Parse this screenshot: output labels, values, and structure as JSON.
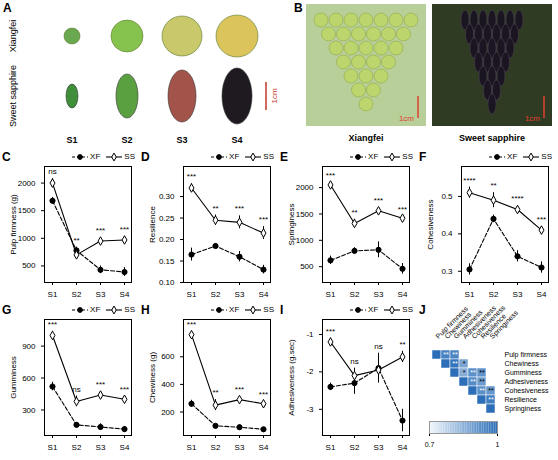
{
  "photos": {
    "A": {
      "panel": "A",
      "rows": [
        "Xiangfei",
        "Sweet sapphire"
      ],
      "stages": [
        "S1",
        "S2",
        "S3",
        "S4"
      ],
      "scale_bar": "1cm"
    },
    "B": {
      "panel": "B",
      "photos": [
        {
          "caption": "Xiangfei",
          "scale_bar": "1cm"
        },
        {
          "caption": "Sweet sapphire",
          "scale_bar": "1cm"
        }
      ]
    }
  },
  "chart_data": [
    {
      "panel": "C",
      "type": "line",
      "categories": [
        "S1",
        "S2",
        "S3",
        "S4"
      ],
      "y_label": "Pulp firmness (g)",
      "ylim": [
        200,
        2300
      ],
      "yticks": [
        500,
        1000,
        1500,
        2000
      ],
      "legend": "top",
      "significance": [
        "ns",
        "**",
        "***",
        "***"
      ],
      "series": [
        {
          "name": "XF",
          "color": "#000000",
          "marker": "circle",
          "line_style": "dashed",
          "values": [
            1680,
            780,
            430,
            390
          ],
          "errors": [
            60,
            60,
            70,
            80
          ]
        },
        {
          "name": "SS",
          "color": "#000000",
          "marker": "open-diamond",
          "line_style": "solid",
          "values": [
            2000,
            700,
            950,
            970
          ],
          "errors": [
            80,
            50,
            60,
            60
          ]
        }
      ]
    },
    {
      "panel": "D",
      "type": "line",
      "categories": [
        "S1",
        "S2",
        "S3",
        "S4"
      ],
      "y_label": "Resilience",
      "ylim": [
        0.1,
        0.37
      ],
      "yticks": [
        {
          "value": 0.1,
          "label": "0.10"
        },
        0.15,
        {
          "value": 0.2,
          "label": "0.20"
        },
        0.25,
        {
          "value": 0.3,
          "label": "0.30"
        }
      ],
      "legend": "top",
      "significance": [
        "***",
        "**",
        "***",
        "***"
      ],
      "series": [
        {
          "name": "XF",
          "color": "#000000",
          "marker": "circle",
          "line_style": "dashed",
          "values": [
            0.165,
            0.185,
            0.16,
            0.13
          ],
          "errors": [
            0.015,
            0.005,
            0.012,
            0.01
          ]
        },
        {
          "name": "SS",
          "color": "#000000",
          "marker": "open-diamond",
          "line_style": "solid",
          "values": [
            0.32,
            0.245,
            0.24,
            0.215
          ],
          "errors": [
            0.01,
            0.012,
            0.015,
            0.015
          ]
        }
      ]
    },
    {
      "panel": "E",
      "type": "line",
      "categories": [
        "S1",
        "S2",
        "S3",
        "S4"
      ],
      "y_label": "Springiness",
      "ylim": [
        200,
        2400
      ],
      "yticks": [
        500,
        1000,
        1500,
        2000
      ],
      "legend": "top",
      "significance": [
        "***",
        "**",
        "***",
        "***"
      ],
      "series": [
        {
          "name": "XF",
          "color": "#000000",
          "marker": "circle",
          "line_style": "dashed",
          "values": [
            620,
            800,
            820,
            460
          ],
          "errors": [
            80,
            60,
            150,
            100
          ]
        },
        {
          "name": "SS",
          "color": "#000000",
          "marker": "open-diamond",
          "line_style": "solid",
          "values": [
            2050,
            1320,
            1560,
            1420
          ],
          "errors": [
            50,
            80,
            60,
            40
          ]
        }
      ]
    },
    {
      "panel": "F",
      "type": "line",
      "categories": [
        "S1",
        "S2",
        "S3",
        "S4"
      ],
      "y_label": "Cohesiveness",
      "ylim": [
        0.27,
        0.58
      ],
      "yticks": [
        0.3,
        0.4,
        0.5
      ],
      "legend": "top",
      "significance": [
        "****",
        "**",
        "****",
        "***"
      ],
      "series": [
        {
          "name": "XF",
          "color": "#000000",
          "marker": "circle",
          "line_style": "dashed",
          "values": [
            0.305,
            0.44,
            0.34,
            0.31
          ],
          "errors": [
            0.015,
            0.01,
            0.015,
            0.015
          ]
        },
        {
          "name": "SS",
          "color": "#000000",
          "marker": "open-diamond",
          "line_style": "solid",
          "values": [
            0.51,
            0.49,
            0.465,
            0.41
          ],
          "errors": [
            0.015,
            0.02,
            0.01,
            0.01
          ]
        }
      ]
    },
    {
      "panel": "G",
      "type": "line",
      "categories": [
        "S1",
        "S2",
        "S3",
        "S4"
      ],
      "y_label": "Gumminess",
      "ylim": [
        60,
        1150
      ],
      "yticks": [
        300,
        600,
        900
      ],
      "legend": "top",
      "significance": [
        "***",
        "ns",
        "***",
        "***"
      ],
      "series": [
        {
          "name": "XF",
          "color": "#000000",
          "marker": "circle",
          "line_style": "dashed",
          "values": [
            520,
            160,
            140,
            120
          ],
          "errors": [
            40,
            20,
            30,
            25
          ]
        },
        {
          "name": "SS",
          "color": "#000000",
          "marker": "open-diamond",
          "line_style": "solid",
          "values": [
            1000,
            380,
            440,
            400
          ],
          "errors": [
            40,
            50,
            30,
            30
          ]
        }
      ]
    },
    {
      "panel": "H",
      "type": "line",
      "categories": [
        "S1",
        "S2",
        "S3",
        "S4"
      ],
      "y_label": "Chewiness (g)",
      "ylim": [
        30,
        870
      ],
      "yticks": [
        200,
        400,
        600
      ],
      "legend": "top",
      "significance": [
        "***",
        "**",
        "***",
        "***"
      ],
      "series": [
        {
          "name": "XF",
          "color": "#000000",
          "marker": "circle",
          "line_style": "dashed",
          "values": [
            260,
            100,
            90,
            75
          ],
          "errors": [
            25,
            10,
            15,
            10
          ]
        },
        {
          "name": "SS",
          "color": "#000000",
          "marker": "open-diamond",
          "line_style": "solid",
          "values": [
            760,
            250,
            290,
            260
          ],
          "errors": [
            20,
            40,
            20,
            20
          ]
        }
      ]
    },
    {
      "panel": "I",
      "type": "line",
      "categories": [
        "S1",
        "S2",
        "S3",
        "S4"
      ],
      "y_label": "Adhesiveness (g.sec)",
      "ylim": [
        -3.7,
        -0.6
      ],
      "yticks": [
        -3,
        -2,
        -1
      ],
      "legend": "top",
      "significance": [
        "***",
        "ns",
        "ns",
        "**"
      ],
      "series": [
        {
          "name": "XF",
          "color": "#000000",
          "marker": "circle",
          "line_style": "dashed",
          "values": [
            -2.4,
            -2.3,
            -1.9,
            -3.3
          ],
          "errors": [
            0.1,
            0.3,
            0.4,
            0.3
          ]
        },
        {
          "name": "SS",
          "color": "#000000",
          "marker": "open-diamond",
          "line_style": "solid",
          "values": [
            -1.2,
            -2.1,
            -1.95,
            -1.6
          ],
          "errors": [
            0.1,
            0.2,
            0.2,
            0.15
          ]
        }
      ]
    },
    {
      "panel": "J",
      "type": "heatmap",
      "labels": [
        "Pulp firmness",
        "Chewiness",
        "Gumminess",
        "Adhesiveness",
        "Cohesiveness",
        "Resilience",
        "Springiness"
      ],
      "cells": [
        {
          "row": 0,
          "col": 0,
          "value": 1
        },
        {
          "row": 0,
          "col": 1,
          "value": 0.96,
          "label": "**"
        },
        {
          "row": 0,
          "col": 2,
          "value": 0.95,
          "label": "**"
        },
        {
          "row": 1,
          "col": 1,
          "value": 1
        },
        {
          "row": 1,
          "col": 2,
          "value": 0.99,
          "label": "**"
        },
        {
          "row": 1,
          "col": 3,
          "value": 0.88,
          "label": "*"
        },
        {
          "row": 2,
          "col": 2,
          "value": 1
        },
        {
          "row": 2,
          "col": 3,
          "value": 0.86,
          "label": "*"
        },
        {
          "row": 2,
          "col": 4,
          "value": 0.93,
          "label": "**"
        },
        {
          "row": 2,
          "col": 5,
          "value": 0.92,
          "label": "**"
        },
        {
          "row": 3,
          "col": 3,
          "value": 1
        },
        {
          "row": 3,
          "col": 4,
          "value": 0.94,
          "label": "**"
        },
        {
          "row": 3,
          "col": 5,
          "value": 0.9,
          "label": "**"
        },
        {
          "row": 4,
          "col": 4,
          "value": 1
        },
        {
          "row": 4,
          "col": 5,
          "value": 0.93,
          "label": "**"
        },
        {
          "row": 4,
          "col": 6,
          "value": 0.91,
          "label": "**"
        },
        {
          "row": 5,
          "col": 5,
          "value": 1
        },
        {
          "row": 5,
          "col": 6,
          "value": 0.97,
          "label": "**"
        },
        {
          "row": 6,
          "col": 6,
          "value": 1
        }
      ],
      "colorbar": {
        "range": [
          0.7,
          1
        ],
        "ticks": [
          0.7,
          1
        ]
      }
    }
  ]
}
